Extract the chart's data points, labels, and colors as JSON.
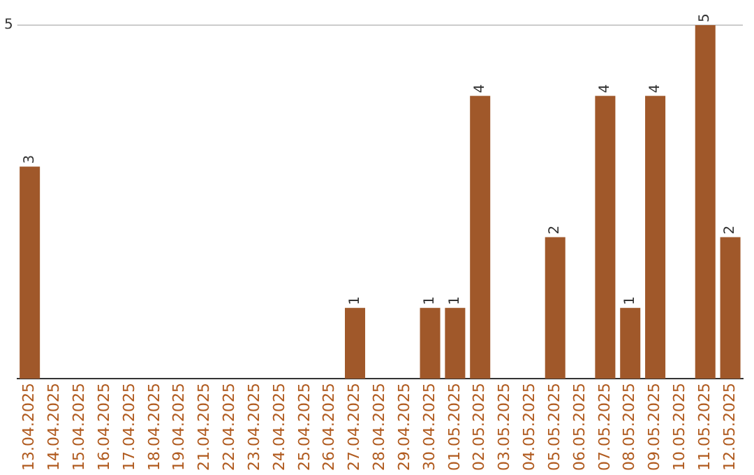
{
  "chart_data": {
    "type": "bar",
    "categories": [
      "13.04.2025",
      "14.04.2025",
      "15.04.2025",
      "16.04.2025",
      "17.04.2025",
      "18.04.2025",
      "19.04.2025",
      "21.04.2025",
      "22.04.2025",
      "23.04.2025",
      "24.04.2025",
      "25.04.2025",
      "26.04.2025",
      "27.04.2025",
      "28.04.2025",
      "29.04.2025",
      "30.04.2025",
      "01.05.2025",
      "02.05.2025",
      "03.05.2025",
      "04.05.2025",
      "05.05.2025",
      "06.05.2025",
      "07.05.2025",
      "08.05.2025",
      "09.05.2025",
      "10.05.2025",
      "11.05.2025",
      "12.05.2025"
    ],
    "values": [
      3,
      0,
      0,
      0,
      0,
      0,
      0,
      0,
      0,
      0,
      0,
      0,
      0,
      1,
      0,
      0,
      1,
      1,
      4,
      0,
      0,
      2,
      0,
      4,
      1,
      4,
      0,
      5,
      2
    ],
    "value_labels": [
      "3",
      null,
      null,
      null,
      null,
      null,
      null,
      null,
      null,
      null,
      null,
      null,
      null,
      "1",
      null,
      null,
      "1",
      "1",
      "4",
      null,
      null,
      "2",
      null,
      "4",
      "1",
      "4",
      null,
      "5",
      "2"
    ],
    "color": "#a0582a",
    "ylim": [
      0,
      5
    ],
    "yticks": [
      5
    ],
    "ref_lines": [
      {
        "axis": "y",
        "value": 5,
        "color": "#cccccc"
      }
    ]
  }
}
